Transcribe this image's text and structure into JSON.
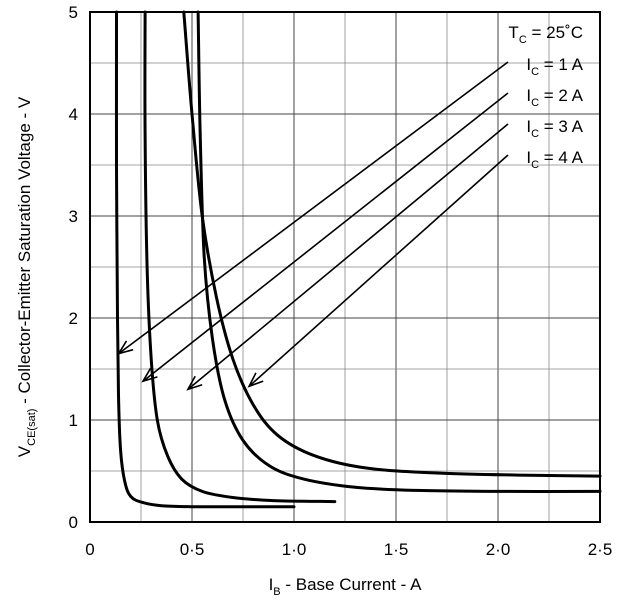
{
  "chart_data": {
    "type": "line",
    "xlabel": {
      "main": "I",
      "sub": "B",
      "rest": " - Base Current - A"
    },
    "ylabel": {
      "main": "V",
      "sub": "CE(sat)",
      "rest": " - Collector-Emitter Saturation Voltage - V"
    },
    "xlim": [
      0,
      2.5
    ],
    "ylim": [
      0,
      5
    ],
    "x_ticks": [
      0,
      0.5,
      1.0,
      1.5,
      2.0,
      2.5
    ],
    "x_tick_labels": [
      "0",
      "0·5",
      "1·0",
      "1·5",
      "2·0",
      "2·5"
    ],
    "y_ticks": [
      0,
      1,
      2,
      3,
      4,
      5
    ],
    "y_tick_labels": [
      "0",
      "1",
      "2",
      "3",
      "4",
      "5"
    ],
    "grid": true,
    "condition": {
      "main": "T",
      "sub": "C",
      "rest": " = 25˚C"
    },
    "series": [
      {
        "label": {
          "main": "I",
          "sub": "C",
          "rest": " = 1 A"
        },
        "x": [
          0.13,
          0.13,
          0.135,
          0.14,
          0.15,
          0.17,
          0.2,
          0.26,
          0.35,
          0.5,
          0.7,
          1.0
        ],
        "y": [
          5.0,
          3.5,
          2.0,
          1.2,
          0.7,
          0.4,
          0.25,
          0.19,
          0.16,
          0.15,
          0.15,
          0.15
        ],
        "arrow_tip": [
          0.14,
          1.65
        ]
      },
      {
        "label": {
          "main": "I",
          "sub": "C",
          "rest": " = 2 A"
        },
        "x": [
          0.27,
          0.27,
          0.28,
          0.3,
          0.33,
          0.38,
          0.45,
          0.55,
          0.7,
          0.9,
          1.2
        ],
        "y": [
          5.0,
          3.8,
          2.5,
          1.6,
          1.0,
          0.65,
          0.42,
          0.3,
          0.24,
          0.21,
          0.2
        ],
        "arrow_tip": [
          0.26,
          1.38
        ]
      },
      {
        "label": {
          "main": "I",
          "sub": "C",
          "rest": " = 3 A"
        },
        "x": [
          0.53,
          0.54,
          0.56,
          0.6,
          0.66,
          0.75,
          0.88,
          1.05,
          1.3,
          1.6,
          2.0,
          2.5
        ],
        "y": [
          5.0,
          3.8,
          2.6,
          1.8,
          1.2,
          0.8,
          0.55,
          0.42,
          0.34,
          0.31,
          0.3,
          0.3
        ],
        "arrow_tip": [
          0.48,
          1.3
        ]
      },
      {
        "label": {
          "main": "I",
          "sub": "C",
          "rest": " = 4 A"
        },
        "x": [
          0.46,
          0.5,
          0.55,
          0.62,
          0.7,
          0.8,
          0.92,
          1.1,
          1.35,
          1.7,
          2.1,
          2.5
        ],
        "y": [
          5.0,
          4.0,
          3.0,
          2.2,
          1.6,
          1.15,
          0.85,
          0.65,
          0.53,
          0.48,
          0.46,
          0.45
        ],
        "arrow_tip": [
          0.78,
          1.33
        ]
      }
    ]
  }
}
